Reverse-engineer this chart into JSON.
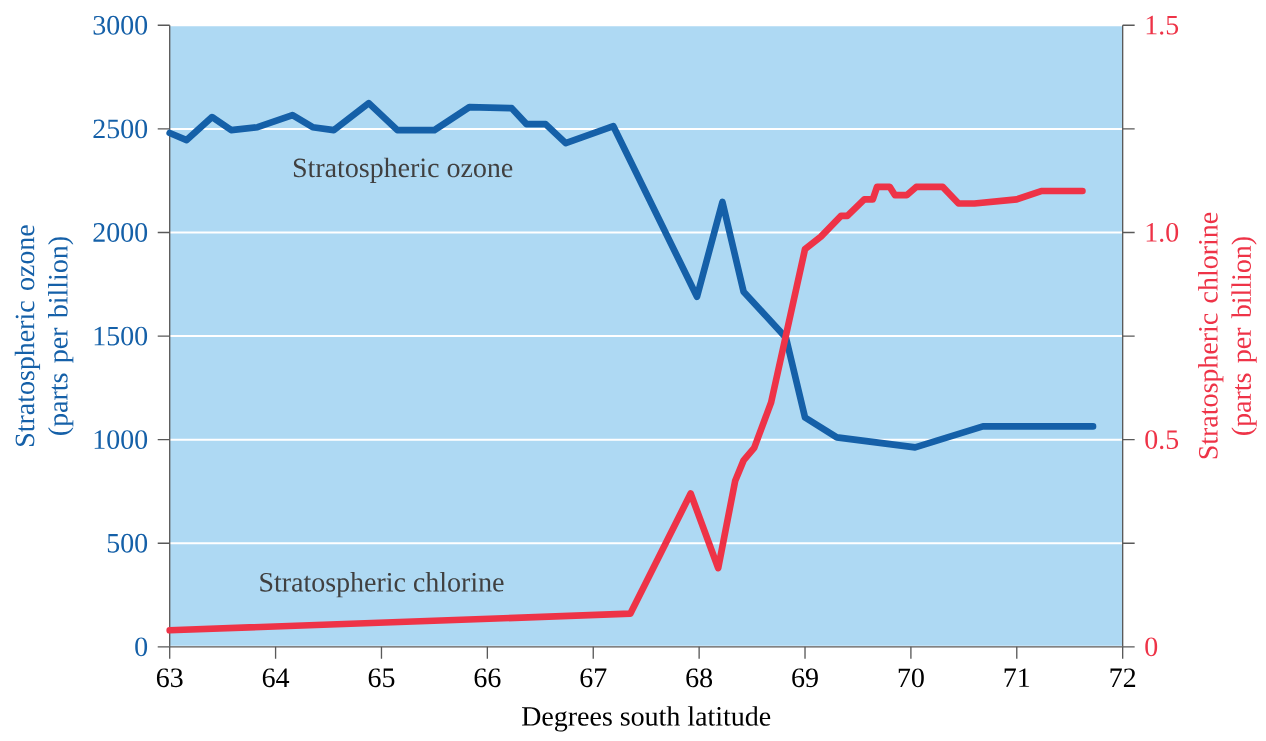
{
  "chart_data": {
    "type": "line",
    "xlabel": "Degrees south latitude",
    "ylabel": "Stratospheric ozone (parts per billion)",
    "y2label": "Stratospheric chlorine (parts per billion)",
    "xlim": [
      63,
      72
    ],
    "xticks": [
      63,
      64,
      65,
      66,
      67,
      68,
      69,
      70,
      71,
      72
    ],
    "ylim": [
      0,
      3000
    ],
    "yticks": [
      0,
      500,
      1000,
      1500,
      2000,
      2500,
      3000
    ],
    "y2lim": [
      0,
      1.5
    ],
    "y2ticks": [
      0,
      {
        "value": 0.25,
        "label": null
      },
      0.5,
      {
        "value": 0.75,
        "label": null
      },
      {
        "value": 1.0,
        "label": "1.0"
      },
      {
        "value": 1.25,
        "label": null
      },
      {
        "value": 1.5,
        "label": "1.5"
      }
    ],
    "grid": "y",
    "legend": false,
    "marker": "none",
    "line_style": "solid",
    "series": [
      {
        "name": "Stratospheric ozone",
        "color": "#1560a8",
        "axis": "y",
        "x": [
          63,
          63.16,
          63.4,
          63.58,
          63.83,
          64.16,
          64.35,
          64.55,
          64.88,
          65.15,
          65.5,
          65.83,
          66.23,
          66.37,
          66.55,
          66.74,
          67.19,
          67.98,
          68.22,
          68.42,
          68.82,
          69.0,
          69.3,
          70.04,
          70.68,
          71.72
        ],
        "values": [
          2480,
          2446,
          2557,
          2494,
          2508,
          2566,
          2508,
          2494,
          2624,
          2494,
          2494,
          2605,
          2600,
          2523,
          2523,
          2431,
          2513,
          1690,
          2147,
          1714,
          1492,
          1107,
          1011,
          963,
          1064,
          1064
        ]
      },
      {
        "name": "Stratospheric chlorine",
        "color": "#ee3347",
        "axis": "y2",
        "x": [
          63,
          67.35,
          67.92,
          68.18,
          68.34,
          68.42,
          68.52,
          68.68,
          69.0,
          69.15,
          69.34,
          69.4,
          69.56,
          69.64,
          69.68,
          69.8,
          69.85,
          69.96,
          70.05,
          70.3,
          70.45,
          70.6,
          71.0,
          71.23,
          71.62
        ],
        "values": [
          0.04,
          0.08,
          0.37,
          0.19,
          0.4,
          0.45,
          0.48,
          0.59,
          0.96,
          0.99,
          1.04,
          1.04,
          1.08,
          1.08,
          1.11,
          1.11,
          1.09,
          1.09,
          1.11,
          1.11,
          1.07,
          1.07,
          1.08,
          1.1,
          1.1
        ]
      }
    ]
  }
}
